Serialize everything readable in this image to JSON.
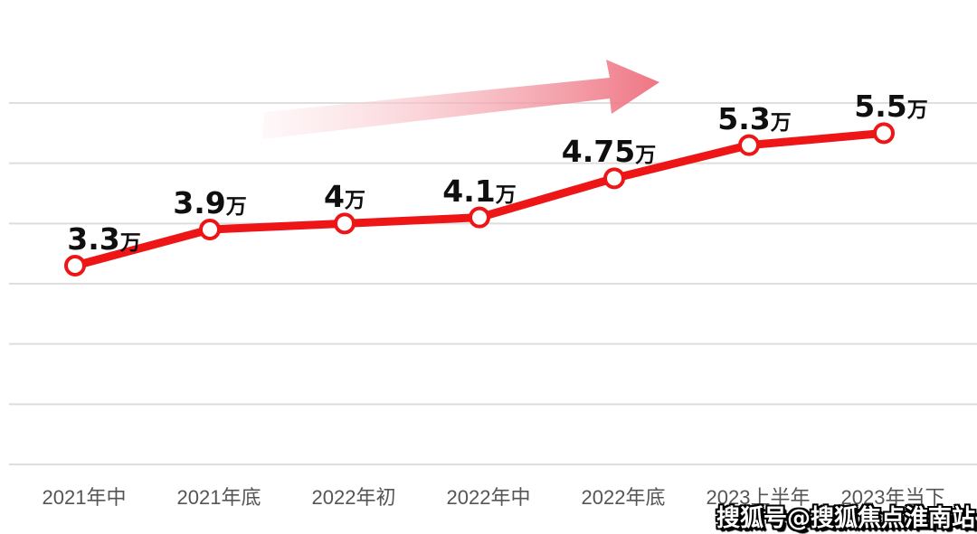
{
  "page": {
    "background": "#ffffff"
  },
  "watermark": {
    "text": "搜狐号@搜狐焦点淮南站"
  },
  "chart_data": {
    "type": "line",
    "title": "",
    "xlabel": "",
    "ylabel": "",
    "categories": [
      "2021年中",
      "2021年底",
      "2022年初",
      "2022年中",
      "2022年底",
      "2023上半年",
      "2023年当下"
    ],
    "values": [
      3.3,
      3.9,
      4.0,
      4.1,
      4.75,
      5.3,
      5.5
    ],
    "value_labels": [
      "3.3",
      "3.9",
      "4",
      "4.1",
      "4.75",
      "5.3",
      "5.5"
    ],
    "unit": "万",
    "ylim": [
      0,
      6
    ],
    "gridline_step": 1,
    "grid": true,
    "legend": "none",
    "annotations": [
      "trend-arrow-up-right"
    ],
    "colors": {
      "line": "#ed1515",
      "marker_fill": "#ffffff",
      "marker_stroke": "#ed1515",
      "gridline": "#dedede",
      "value_label": "#0f0f0f",
      "axis_label": "#555555",
      "arrow_start": "#fdeff1",
      "arrow_end": "#ee6e7d"
    },
    "layout_hints": {
      "label_dx": [
        32,
        0,
        0,
        0,
        -6,
        6,
        8
      ],
      "axis_label_dx": 10,
      "legend_position": "none"
    }
  }
}
